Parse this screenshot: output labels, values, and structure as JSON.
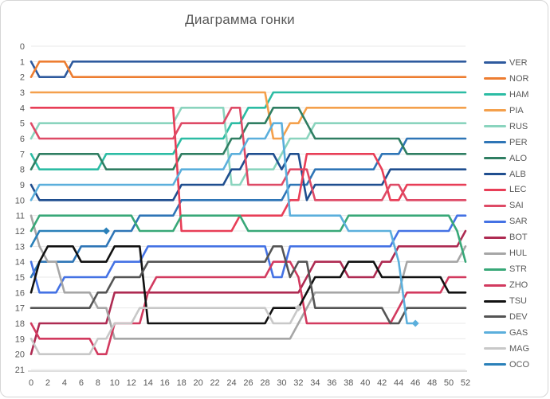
{
  "title": "Диаграмма гонки",
  "axes": {
    "x_tick_labels": [
      "0",
      "2",
      "4",
      "6",
      "8",
      "10",
      "12",
      "14",
      "16",
      "18",
      "20",
      "22",
      "24",
      "26",
      "28",
      "30",
      "32",
      "34",
      "36",
      "38",
      "40",
      "42",
      "44",
      "46",
      "48",
      "50",
      "52"
    ],
    "y_tick_labels": [
      "0",
      "1",
      "2",
      "3",
      "4",
      "5",
      "6",
      "7",
      "8",
      "9",
      "10",
      "11",
      "12",
      "13",
      "14",
      "15",
      "16",
      "17",
      "18",
      "19",
      "20",
      "21"
    ],
    "tick_color": "#595959",
    "gridline_color": "#e8e8e8",
    "axis_line_color": "#bfbfbf"
  },
  "chart_data": {
    "type": "line",
    "title": "Диаграмма гонки",
    "xlabel": "",
    "ylabel": "",
    "x_range": [
      0,
      52
    ],
    "y_range": [
      0,
      21
    ],
    "x_step": 2,
    "grid": "horizontal",
    "legend_position": "right",
    "note": "Race position by lap; y = position (1 = leader), series ending with a diamond marker = retirement",
    "series": [
      {
        "name": "VER",
        "color": "#2E5A9E",
        "positions": [
          1,
          2,
          2,
          2,
          2,
          1,
          1,
          1,
          1,
          1,
          1,
          1,
          1,
          1,
          1,
          1,
          1,
          1,
          1,
          1,
          1,
          1,
          1,
          1,
          1,
          1,
          1,
          1,
          1,
          1,
          1,
          1,
          1,
          1,
          1,
          1,
          1,
          1,
          1,
          1,
          1,
          1,
          1,
          1,
          1,
          1,
          1,
          1,
          1,
          1,
          1,
          1,
          1
        ]
      },
      {
        "name": "NOR",
        "color": "#ED7D31",
        "positions": [
          2,
          1,
          1,
          1,
          1,
          2,
          2,
          2,
          2,
          2,
          2,
          2,
          2,
          2,
          2,
          2,
          2,
          2,
          2,
          2,
          2,
          2,
          2,
          2,
          2,
          2,
          2,
          2,
          2,
          2,
          2,
          2,
          2,
          2,
          2,
          2,
          2,
          2,
          2,
          2,
          2,
          2,
          2,
          2,
          2,
          2,
          2,
          2,
          2,
          2,
          2,
          2,
          2
        ]
      },
      {
        "name": "HAM",
        "color": "#2CBCA4",
        "positions": [
          7,
          8,
          8,
          8,
          8,
          8,
          8,
          8,
          8,
          7,
          7,
          7,
          7,
          7,
          7,
          7,
          7,
          7,
          6,
          6,
          6,
          6,
          6,
          6,
          5,
          5,
          4,
          4,
          4,
          3,
          3,
          3,
          3,
          3,
          3,
          3,
          3,
          3,
          3,
          3,
          3,
          3,
          3,
          3,
          3,
          3,
          3,
          3,
          3,
          3,
          3,
          3,
          3
        ]
      },
      {
        "name": "PIA",
        "color": "#F4A04C",
        "positions": [
          3,
          3,
          3,
          3,
          3,
          3,
          3,
          3,
          3,
          3,
          3,
          3,
          3,
          3,
          3,
          3,
          3,
          3,
          3,
          3,
          3,
          3,
          3,
          3,
          3,
          3,
          3,
          3,
          3,
          6,
          6,
          5,
          5,
          4,
          4,
          4,
          4,
          4,
          4,
          4,
          4,
          4,
          4,
          4,
          4,
          4,
          4,
          4,
          4,
          4,
          4,
          4,
          4
        ]
      },
      {
        "name": "RUS",
        "color": "#8AD4BE",
        "positions": [
          6,
          5,
          5,
          5,
          5,
          5,
          5,
          5,
          5,
          5,
          5,
          5,
          5,
          5,
          5,
          5,
          5,
          5,
          4,
          4,
          4,
          4,
          4,
          4,
          9,
          9,
          8,
          8,
          8,
          8,
          7,
          6,
          6,
          6,
          5,
          5,
          5,
          5,
          5,
          5,
          5,
          5,
          5,
          5,
          5,
          5,
          5,
          5,
          5,
          5,
          5,
          5,
          5
        ]
      },
      {
        "name": "PER",
        "color": "#2E75B6",
        "positions": [
          15,
          14,
          14,
          14,
          14,
          14,
          13,
          13,
          13,
          13,
          12,
          12,
          12,
          11,
          11,
          11,
          11,
          11,
          10,
          10,
          10,
          10,
          10,
          10,
          10,
          10,
          10,
          10,
          10,
          10,
          10,
          9,
          9,
          9,
          8,
          8,
          8,
          8,
          8,
          8,
          8,
          8,
          7,
          7,
          7,
          6,
          6,
          6,
          6,
          6,
          6,
          6,
          6
        ]
      },
      {
        "name": "ALO",
        "color": "#2F7E62",
        "positions": [
          8,
          7,
          7,
          7,
          7,
          7,
          7,
          7,
          7,
          8,
          8,
          8,
          8,
          8,
          8,
          8,
          8,
          8,
          7,
          7,
          7,
          7,
          7,
          7,
          6,
          6,
          5,
          5,
          5,
          4,
          4,
          4,
          4,
          5,
          6,
          6,
          6,
          6,
          6,
          6,
          6,
          6,
          6,
          6,
          6,
          7,
          7,
          7,
          7,
          7,
          7,
          7,
          7
        ]
      },
      {
        "name": "ALB",
        "color": "#1F4E8F",
        "positions": [
          9,
          10,
          10,
          10,
          10,
          10,
          10,
          10,
          10,
          10,
          10,
          10,
          10,
          10,
          10,
          10,
          10,
          10,
          9,
          9,
          9,
          9,
          9,
          9,
          8,
          8,
          7,
          7,
          7,
          7,
          8,
          7,
          7,
          10,
          9,
          9,
          9,
          9,
          9,
          9,
          9,
          9,
          9,
          8,
          8,
          8,
          8,
          8,
          8,
          8,
          8,
          8,
          8
        ]
      },
      {
        "name": "LEC",
        "color": "#E83E57",
        "positions": [
          4,
          4,
          4,
          4,
          4,
          4,
          4,
          4,
          4,
          4,
          4,
          4,
          4,
          4,
          4,
          4,
          4,
          4,
          12,
          12,
          12,
          12,
          12,
          12,
          12,
          11,
          11,
          11,
          11,
          11,
          11,
          10,
          10,
          7,
          7,
          7,
          7,
          7,
          7,
          7,
          7,
          7,
          8,
          10,
          10,
          9,
          9,
          9,
          9,
          9,
          9,
          9,
          9
        ]
      },
      {
        "name": "SAI",
        "color": "#DE4A66",
        "positions": [
          5,
          6,
          6,
          6,
          6,
          6,
          6,
          6,
          6,
          6,
          6,
          6,
          6,
          6,
          6,
          6,
          6,
          6,
          5,
          5,
          5,
          5,
          5,
          5,
          4,
          4,
          9,
          9,
          9,
          9,
          9,
          8,
          8,
          8,
          10,
          10,
          10,
          10,
          10,
          10,
          10,
          10,
          10,
          9,
          9,
          10,
          10,
          10,
          10,
          10,
          10,
          10,
          10
        ]
      },
      {
        "name": "SAR",
        "color": "#4472E4",
        "positions": [
          14,
          16,
          16,
          16,
          15,
          15,
          15,
          15,
          15,
          15,
          14,
          14,
          14,
          14,
          13,
          13,
          13,
          13,
          13,
          13,
          13,
          13,
          13,
          13,
          13,
          13,
          13,
          13,
          13,
          15,
          15,
          13,
          13,
          13,
          13,
          13,
          13,
          13,
          13,
          13,
          13,
          13,
          13,
          13,
          12,
          12,
          12,
          12,
          12,
          12,
          12,
          11,
          11
        ]
      },
      {
        "name": "BOT",
        "color": "#AE2B52",
        "positions": [
          20,
          18,
          18,
          18,
          18,
          18,
          18,
          18,
          18,
          18,
          16,
          16,
          16,
          16,
          16,
          16,
          16,
          16,
          16,
          16,
          16,
          16,
          16,
          16,
          16,
          16,
          16,
          16,
          16,
          16,
          16,
          16,
          16,
          15,
          14,
          14,
          14,
          14,
          15,
          15,
          15,
          15,
          14,
          14,
          13,
          13,
          13,
          13,
          13,
          13,
          13,
          13,
          12
        ]
      },
      {
        "name": "HUL",
        "color": "#A6A6A6",
        "positions": [
          11,
          13,
          14,
          14,
          16,
          16,
          16,
          16,
          17,
          17,
          19,
          19,
          19,
          19,
          19,
          19,
          19,
          19,
          19,
          19,
          19,
          19,
          19,
          19,
          19,
          19,
          19,
          19,
          19,
          19,
          19,
          19,
          18,
          17,
          16,
          16,
          16,
          16,
          16,
          16,
          16,
          16,
          16,
          16,
          16,
          14,
          14,
          14,
          14,
          14,
          14,
          14,
          13
        ]
      },
      {
        "name": "STR",
        "color": "#38A878",
        "positions": [
          12,
          11,
          11,
          11,
          11,
          11,
          11,
          11,
          11,
          11,
          11,
          11,
          11,
          12,
          12,
          12,
          12,
          12,
          11,
          11,
          11,
          11,
          11,
          11,
          11,
          11,
          12,
          12,
          12,
          12,
          12,
          12,
          12,
          12,
          12,
          12,
          12,
          12,
          11,
          11,
          11,
          11,
          11,
          11,
          11,
          11,
          11,
          11,
          11,
          11,
          11,
          12,
          14
        ]
      },
      {
        "name": "ZHO",
        "color": "#D23A5F",
        "positions": [
          18,
          19,
          19,
          19,
          19,
          19,
          19,
          19,
          20,
          20,
          18,
          18,
          18,
          18,
          16,
          15,
          15,
          15,
          15,
          15,
          15,
          15,
          15,
          15,
          15,
          15,
          15,
          15,
          15,
          14,
          14,
          14,
          15,
          18,
          18,
          18,
          18,
          18,
          18,
          18,
          18,
          18,
          18,
          18,
          17,
          16,
          16,
          16,
          16,
          16,
          15,
          15,
          15
        ]
      },
      {
        "name": "TSU",
        "color": "#111111",
        "positions": [
          16,
          14,
          13,
          13,
          13,
          13,
          14,
          14,
          14,
          14,
          13,
          13,
          13,
          13,
          18,
          18,
          18,
          18,
          18,
          18,
          18,
          18,
          18,
          18,
          18,
          18,
          18,
          18,
          18,
          17,
          17,
          17,
          17,
          16,
          15,
          15,
          15,
          15,
          14,
          14,
          14,
          14,
          15,
          15,
          15,
          15,
          15,
          15,
          15,
          15,
          16,
          16,
          16
        ]
      },
      {
        "name": "DEV",
        "color": "#545454",
        "positions": [
          17,
          17,
          17,
          17,
          17,
          17,
          17,
          17,
          16,
          16,
          15,
          15,
          15,
          15,
          14,
          14,
          14,
          14,
          14,
          14,
          14,
          14,
          14,
          14,
          14,
          14,
          14,
          14,
          14,
          13,
          13,
          15,
          14,
          14,
          17,
          17,
          17,
          17,
          17,
          17,
          17,
          17,
          17,
          18,
          18,
          17,
          17,
          17,
          17,
          17,
          17,
          17,
          17
        ]
      },
      {
        "name": "GAS",
        "color": "#5BAFDC",
        "positions": [
          10,
          9,
          9,
          9,
          9,
          9,
          9,
          9,
          9,
          9,
          9,
          9,
          9,
          9,
          9,
          9,
          9,
          9,
          8,
          8,
          8,
          8,
          8,
          8,
          7,
          7,
          6,
          6,
          6,
          5,
          5,
          11,
          11,
          11,
          11,
          11,
          11,
          11,
          12,
          12,
          12,
          12,
          12,
          12,
          14,
          18,
          18,
          null,
          null,
          null,
          null,
          null,
          null
        ],
        "retired": true,
        "retired_lap": 46
      },
      {
        "name": "MAG",
        "color": "#C8C8C8",
        "positions": [
          19,
          20,
          20,
          20,
          20,
          20,
          20,
          20,
          19,
          19,
          18,
          18,
          18,
          17,
          17,
          17,
          17,
          17,
          17,
          17,
          17,
          17,
          17,
          17,
          17,
          17,
          17,
          17,
          17,
          18,
          18,
          18,
          17,
          null,
          null,
          null,
          null,
          null,
          null,
          null,
          null,
          null,
          null,
          null,
          null,
          null,
          null,
          null,
          null,
          null,
          null,
          null,
          null
        ],
        "retired": true,
        "retired_lap": 32
      },
      {
        "name": "OCO",
        "color": "#2A80B9",
        "positions": [
          13,
          12,
          12,
          12,
          12,
          12,
          12,
          12,
          12,
          12,
          null,
          null,
          null,
          null,
          null,
          null,
          null,
          null,
          null,
          null,
          null,
          null,
          null,
          null,
          null,
          null,
          null,
          null,
          null,
          null,
          null,
          null,
          null,
          null,
          null,
          null,
          null,
          null,
          null,
          null,
          null,
          null,
          null,
          null,
          null,
          null,
          null,
          null,
          null,
          null,
          null,
          null,
          null
        ],
        "retired": true,
        "retired_lap": 9
      }
    ]
  },
  "legend": {
    "labels": [
      "VER",
      "NOR",
      "HAM",
      "PIA",
      "RUS",
      "PER",
      "ALO",
      "ALB",
      "LEC",
      "SAI",
      "SAR",
      "BOT",
      "HUL",
      "STR",
      "ZHO",
      "TSU",
      "DEV",
      "GAS",
      "MAG",
      "OCO"
    ]
  }
}
